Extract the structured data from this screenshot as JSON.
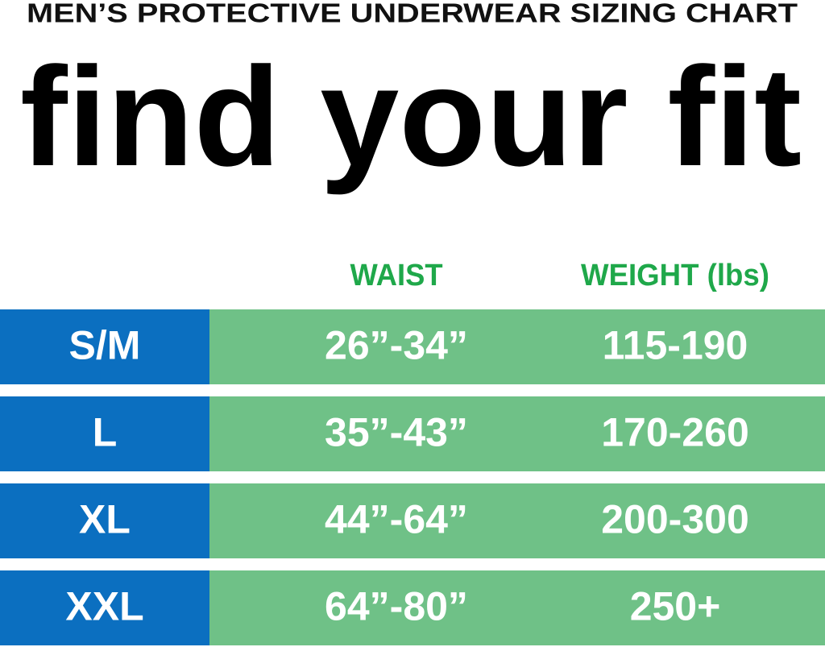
{
  "header": {
    "subtitle": "MEN’S PROTECTIVE UNDERWEAR SIZING CHART",
    "title": "find your fit"
  },
  "table": {
    "columns": [
      "WAIST",
      "WEIGHT (lbs)"
    ],
    "rows": [
      [
        "S/M",
        "26”-34”",
        "115-190"
      ],
      [
        "L",
        "35”-43”",
        "170-260"
      ],
      [
        "XL",
        "44”-64”",
        "200-300"
      ],
      [
        "XXL",
        "64”-80”",
        "250+"
      ]
    ]
  }
}
